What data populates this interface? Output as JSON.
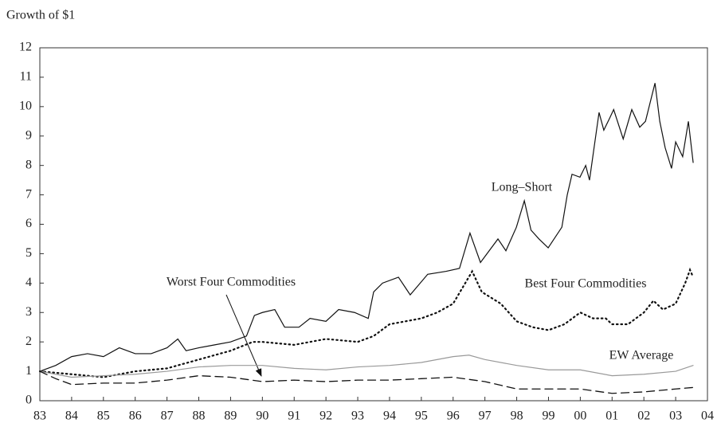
{
  "chart_data": {
    "type": "line",
    "y_label": "Growth of $1",
    "xlim": [
      1983,
      2004
    ],
    "ylim": [
      0,
      12
    ],
    "yticks": [
      0,
      1,
      2,
      3,
      4,
      5,
      6,
      7,
      8,
      9,
      10,
      11,
      12
    ],
    "xticks": [
      {
        "value": 1983,
        "label": "83"
      },
      {
        "value": 1984,
        "label": "84"
      },
      {
        "value": 1985,
        "label": "85"
      },
      {
        "value": 1986,
        "label": "86"
      },
      {
        "value": 1987,
        "label": "87"
      },
      {
        "value": 1988,
        "label": "88"
      },
      {
        "value": 1989,
        "label": "89"
      },
      {
        "value": 1990,
        "label": "90"
      },
      {
        "value": 1991,
        "label": "91"
      },
      {
        "value": 1992,
        "label": "92"
      },
      {
        "value": 1993,
        "label": "93"
      },
      {
        "value": 1994,
        "label": "94"
      },
      {
        "value": 1995,
        "label": "95"
      },
      {
        "value": 1996,
        "label": "96"
      },
      {
        "value": 1997,
        "label": "97"
      },
      {
        "value": 1998,
        "label": "98"
      },
      {
        "value": 1999,
        "label": "99"
      },
      {
        "value": 2000,
        "label": "00"
      },
      {
        "value": 2001,
        "label": "01"
      },
      {
        "value": 2002,
        "label": "02"
      },
      {
        "value": 2003,
        "label": "03"
      },
      {
        "value": 2004,
        "label": "04"
      }
    ],
    "grid": false,
    "series": [
      {
        "name": "Long–Short",
        "color": "#111111",
        "dash": "solid",
        "x": [
          1983.0,
          1983.5,
          1984.0,
          1984.5,
          1985.0,
          1985.5,
          1986.0,
          1986.5,
          1987.0,
          1987.34,
          1987.6,
          1988.0,
          1988.5,
          1989.0,
          1989.5,
          1989.75,
          1990.0,
          1990.39,
          1990.7,
          1991.15,
          1991.5,
          1992.0,
          1992.4,
          1992.9,
          1993.33,
          1993.5,
          1993.78,
          1994.28,
          1994.65,
          1995.2,
          1995.78,
          1996.2,
          1996.53,
          1996.86,
          1997.41,
          1997.66,
          1997.99,
          1998.24,
          1998.45,
          1998.7,
          1998.99,
          1999.42,
          1999.59,
          1999.74,
          1999.99,
          2000.17,
          2000.29,
          2000.42,
          2000.59,
          2000.74,
          2000.92,
          2001.05,
          2001.35,
          2001.62,
          2001.87,
          2002.05,
          2002.35,
          2002.5,
          2002.67,
          2002.87,
          2003.0,
          2003.22,
          2003.4,
          2003.55
        ],
        "values": [
          1.0,
          1.2,
          1.5,
          1.6,
          1.5,
          1.8,
          1.6,
          1.6,
          1.8,
          2.1,
          1.7,
          1.8,
          1.9,
          2.0,
          2.2,
          2.9,
          3.0,
          3.1,
          2.5,
          2.5,
          2.8,
          2.7,
          3.1,
          3.0,
          2.8,
          3.7,
          4.0,
          4.2,
          3.6,
          4.3,
          4.4,
          4.5,
          5.7,
          4.7,
          5.5,
          5.1,
          5.9,
          6.8,
          5.8,
          5.5,
          5.2,
          5.9,
          7.0,
          7.7,
          7.6,
          8.0,
          7.5,
          8.5,
          9.8,
          9.2,
          9.6,
          9.9,
          8.9,
          9.9,
          9.3,
          9.5,
          10.8,
          9.5,
          8.6,
          7.9,
          8.8,
          8.3,
          9.5,
          8.1
        ]
      },
      {
        "name": "Best Four Commodities",
        "color": "#111111",
        "dash": "dotted",
        "x": [
          1983.0,
          1984.0,
          1985.0,
          1986.0,
          1987.0,
          1988.0,
          1989.0,
          1989.7,
          1990.0,
          1991.0,
          1992.0,
          1993.0,
          1993.5,
          1994.0,
          1995.0,
          1995.5,
          1996.0,
          1996.6,
          1996.9,
          1997.5,
          1998.0,
          1998.5,
          1999.0,
          1999.5,
          2000.0,
          2000.4,
          2000.8,
          2001.0,
          2001.5,
          2002.0,
          2002.3,
          2002.6,
          2003.0,
          2003.3,
          2003.45,
          2003.55
        ],
        "values": [
          1.0,
          0.9,
          0.8,
          1.0,
          1.1,
          1.4,
          1.7,
          2.0,
          2.0,
          1.9,
          2.1,
          2.0,
          2.2,
          2.6,
          2.8,
          3.0,
          3.3,
          4.4,
          3.7,
          3.3,
          2.7,
          2.5,
          2.4,
          2.6,
          3.0,
          2.8,
          2.8,
          2.6,
          2.6,
          3.0,
          3.4,
          3.1,
          3.3,
          4.0,
          4.45,
          4.2
        ]
      },
      {
        "name": "EW Average",
        "color": "#999999",
        "dash": "solid",
        "x": [
          1983.0,
          1984.0,
          1985.0,
          1986.0,
          1987.0,
          1988.0,
          1989.0,
          1990.0,
          1991.0,
          1992.0,
          1993.0,
          1994.0,
          1995.0,
          1996.0,
          1996.5,
          1997.0,
          1998.0,
          1999.0,
          2000.0,
          2001.0,
          2002.0,
          2003.0,
          2003.55
        ],
        "values": [
          1.0,
          0.8,
          0.85,
          0.9,
          1.0,
          1.15,
          1.2,
          1.2,
          1.1,
          1.05,
          1.15,
          1.2,
          1.3,
          1.5,
          1.55,
          1.4,
          1.2,
          1.05,
          1.05,
          0.85,
          0.9,
          1.0,
          1.2
        ]
      },
      {
        "name": "Worst Four Commodities",
        "color": "#111111",
        "dash": "dashed",
        "x": [
          1983.0,
          1983.5,
          1984.0,
          1985.0,
          1986.0,
          1987.0,
          1988.0,
          1989.0,
          1990.0,
          1991.0,
          1992.0,
          1993.0,
          1994.0,
          1995.0,
          1996.0,
          1997.0,
          1998.0,
          1999.0,
          2000.0,
          2001.0,
          2002.0,
          2003.0,
          2003.55
        ],
        "values": [
          1.0,
          0.75,
          0.55,
          0.6,
          0.6,
          0.7,
          0.85,
          0.8,
          0.65,
          0.7,
          0.65,
          0.7,
          0.7,
          0.75,
          0.8,
          0.65,
          0.4,
          0.4,
          0.4,
          0.25,
          0.3,
          0.4,
          0.45
        ]
      }
    ]
  }
}
